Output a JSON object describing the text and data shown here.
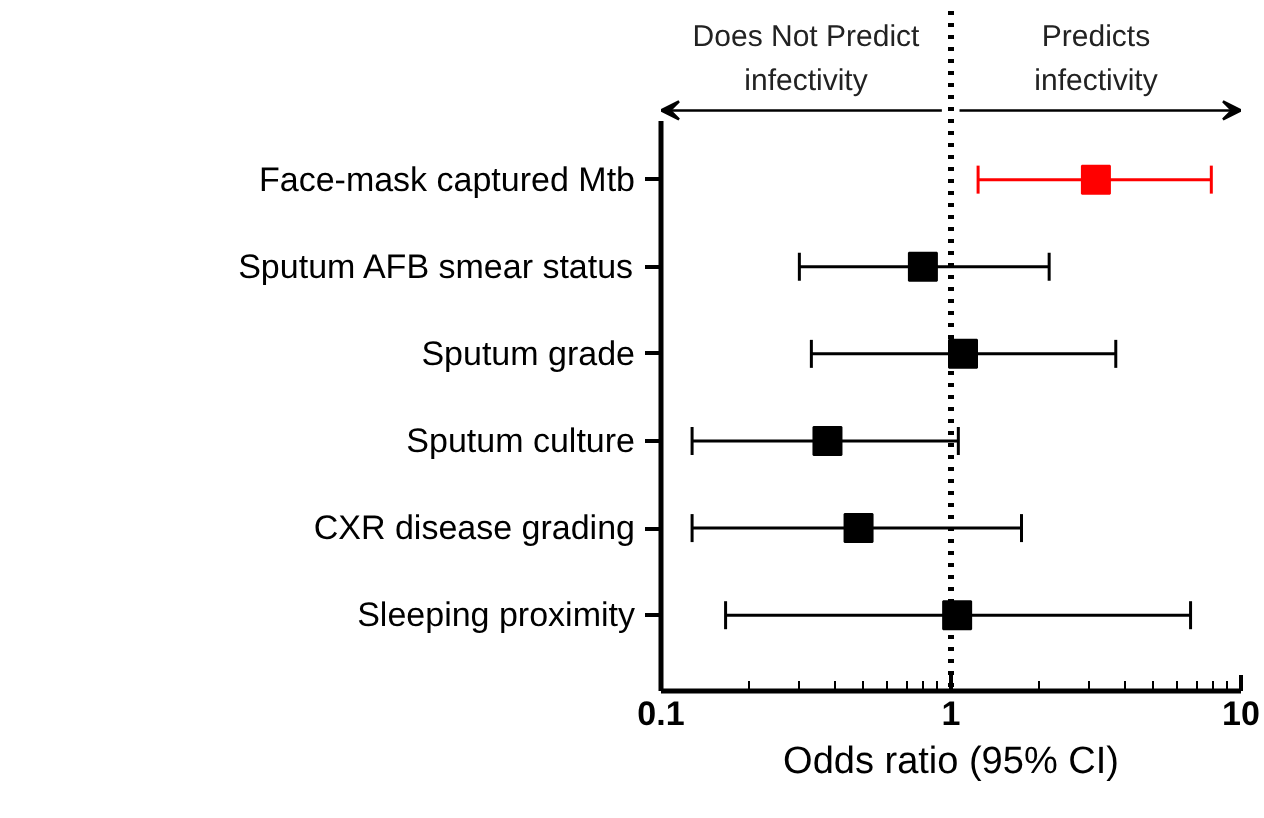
{
  "chart_data": {
    "type": "scatter",
    "orientation": "horizontal",
    "xlabel": "Odds ratio (95% CI)",
    "categories": [
      "Face-mask captured Mtb",
      "Sputum AFB smear status",
      "Sputum grade",
      "Sputum culture",
      "CXR disease grading",
      "Sleeping proximity"
    ],
    "values": [
      3.16,
      0.8,
      1.1,
      0.375,
      0.48,
      1.05
    ],
    "errors": [
      [
        1.24,
        7.9
      ],
      [
        0.3,
        2.18
      ],
      [
        0.33,
        3.7
      ],
      [
        0.128,
        1.06
      ],
      [
        0.128,
        1.75
      ],
      [
        0.167,
        6.7
      ]
    ],
    "colors": [
      "#ff0000",
      "#000000",
      "#000000",
      "#000000",
      "#000000",
      "#000000"
    ],
    "marker": "square",
    "log": "x",
    "xlim": [
      0.1,
      10
    ],
    "xticks": [
      0.1,
      1,
      10
    ],
    "grid": false,
    "ref_lines": [
      {
        "axis": "x",
        "value": 1,
        "line_style": "dotted",
        "color": "#000000"
      }
    ],
    "annotations": [
      "Does Not Predict\ninfectivity",
      "Predicts\ninfectivity"
    ]
  }
}
